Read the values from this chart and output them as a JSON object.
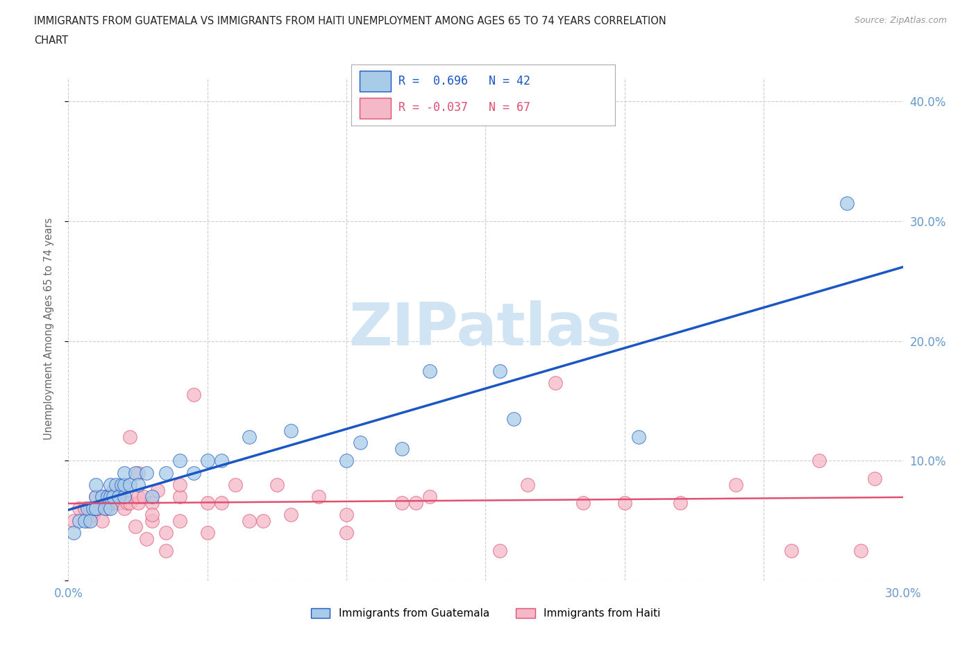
{
  "title_line1": "IMMIGRANTS FROM GUATEMALA VS IMMIGRANTS FROM HAITI UNEMPLOYMENT AMONG AGES 65 TO 74 YEARS CORRELATION",
  "title_line2": "CHART",
  "source": "Source: ZipAtlas.com",
  "ylabel": "Unemployment Among Ages 65 to 74 years",
  "xlim": [
    0.0,
    0.3
  ],
  "ylim": [
    0.0,
    0.42
  ],
  "yticks": [
    0.0,
    0.1,
    0.2,
    0.3,
    0.4
  ],
  "ytick_labels": [
    "",
    "10.0%",
    "20.0%",
    "30.0%",
    "40.0%"
  ],
  "xticks": [
    0.0,
    0.3
  ],
  "xtick_labels": [
    "0.0%",
    "30.0%"
  ],
  "R_guatemala": 0.696,
  "N_guatemala": 42,
  "R_haiti": -0.037,
  "N_haiti": 67,
  "color_guatemala": "#a8cce8",
  "color_haiti": "#f5b8c8",
  "line_color_guatemala": "#1a56c4",
  "line_color_haiti": "#e05070",
  "legend_text_color_guatemala": "#1a56c4",
  "legend_text_color_haiti": "#e05070",
  "tick_color": "#6699cc",
  "ylabel_color": "#666666",
  "watermark_color": "#d0e4f4",
  "guatemala_x": [
    0.002,
    0.004,
    0.006,
    0.007,
    0.008,
    0.009,
    0.01,
    0.01,
    0.01,
    0.012,
    0.013,
    0.014,
    0.015,
    0.015,
    0.015,
    0.016,
    0.017,
    0.018,
    0.019,
    0.02,
    0.02,
    0.02,
    0.022,
    0.024,
    0.025,
    0.028,
    0.03,
    0.035,
    0.04,
    0.045,
    0.05,
    0.055,
    0.065,
    0.08,
    0.1,
    0.105,
    0.12,
    0.13,
    0.155,
    0.16,
    0.205,
    0.28
  ],
  "guatemala_y": [
    0.04,
    0.05,
    0.05,
    0.06,
    0.05,
    0.06,
    0.06,
    0.07,
    0.08,
    0.07,
    0.06,
    0.07,
    0.06,
    0.07,
    0.08,
    0.07,
    0.08,
    0.07,
    0.08,
    0.07,
    0.08,
    0.09,
    0.08,
    0.09,
    0.08,
    0.09,
    0.07,
    0.09,
    0.1,
    0.09,
    0.1,
    0.1,
    0.12,
    0.125,
    0.1,
    0.115,
    0.11,
    0.175,
    0.175,
    0.135,
    0.12,
    0.315
  ],
  "haiti_x": [
    0.002,
    0.004,
    0.006,
    0.007,
    0.008,
    0.009,
    0.01,
    0.01,
    0.011,
    0.012,
    0.013,
    0.013,
    0.014,
    0.015,
    0.015,
    0.016,
    0.016,
    0.017,
    0.018,
    0.019,
    0.02,
    0.02,
    0.02,
    0.021,
    0.022,
    0.022,
    0.024,
    0.025,
    0.025,
    0.025,
    0.027,
    0.028,
    0.03,
    0.03,
    0.03,
    0.032,
    0.035,
    0.035,
    0.04,
    0.04,
    0.04,
    0.045,
    0.05,
    0.05,
    0.055,
    0.06,
    0.065,
    0.07,
    0.075,
    0.08,
    0.09,
    0.1,
    0.1,
    0.12,
    0.125,
    0.13,
    0.155,
    0.165,
    0.175,
    0.185,
    0.2,
    0.22,
    0.24,
    0.26,
    0.27,
    0.285,
    0.29
  ],
  "haiti_y": [
    0.05,
    0.06,
    0.06,
    0.05,
    0.06,
    0.055,
    0.06,
    0.07,
    0.06,
    0.05,
    0.07,
    0.065,
    0.06,
    0.07,
    0.065,
    0.065,
    0.075,
    0.07,
    0.065,
    0.075,
    0.06,
    0.07,
    0.08,
    0.065,
    0.12,
    0.065,
    0.045,
    0.065,
    0.07,
    0.09,
    0.07,
    0.035,
    0.05,
    0.065,
    0.055,
    0.075,
    0.04,
    0.025,
    0.05,
    0.07,
    0.08,
    0.155,
    0.04,
    0.065,
    0.065,
    0.08,
    0.05,
    0.05,
    0.08,
    0.055,
    0.07,
    0.04,
    0.055,
    0.065,
    0.065,
    0.07,
    0.025,
    0.08,
    0.165,
    0.065,
    0.065,
    0.065,
    0.08,
    0.025,
    0.1,
    0.025,
    0.085
  ]
}
